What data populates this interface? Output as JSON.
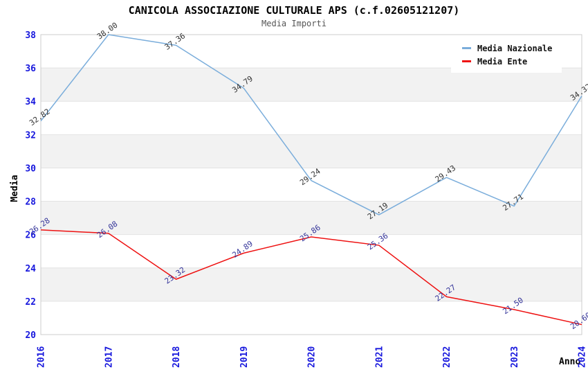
{
  "title": "CANICOLA ASSOCIAZIONE CULTURALE APS (c.f.02605121207)",
  "subtitle": "Media Importi",
  "chart_data": {
    "type": "line",
    "title": "CANICOLA ASSOCIAZIONE CULTURALE APS (c.f.02605121207)",
    "subtitle": "Media Importi",
    "xlabel": "Anno",
    "ylabel": "Media",
    "x": [
      "2016",
      "2017",
      "2018",
      "2019",
      "2020",
      "2021",
      "2022",
      "2023",
      "2024"
    ],
    "series": [
      {
        "name": "Media Nazionale",
        "color": "#7aaddb",
        "label_color": "#333333",
        "values": [
          32.82,
          38.0,
          37.36,
          34.79,
          29.24,
          27.19,
          29.43,
          27.71,
          34.32
        ]
      },
      {
        "name": "Media Ente",
        "color": "#ee1111",
        "label_color": "#333399",
        "values": [
          26.28,
          26.08,
          23.32,
          24.89,
          25.86,
          25.36,
          22.27,
          21.5,
          20.6
        ]
      }
    ],
    "ylim": [
      20,
      38
    ],
    "ytick_step": 2,
    "value_decimals": 2,
    "value_labels": true,
    "legend_position": "top-right",
    "grid": "horizontal-bands",
    "band_color": "#f2f2f2",
    "grid_color": "#e3e3e3",
    "border_color": "#cccccc",
    "axis_tick_color": "#1717dd"
  }
}
